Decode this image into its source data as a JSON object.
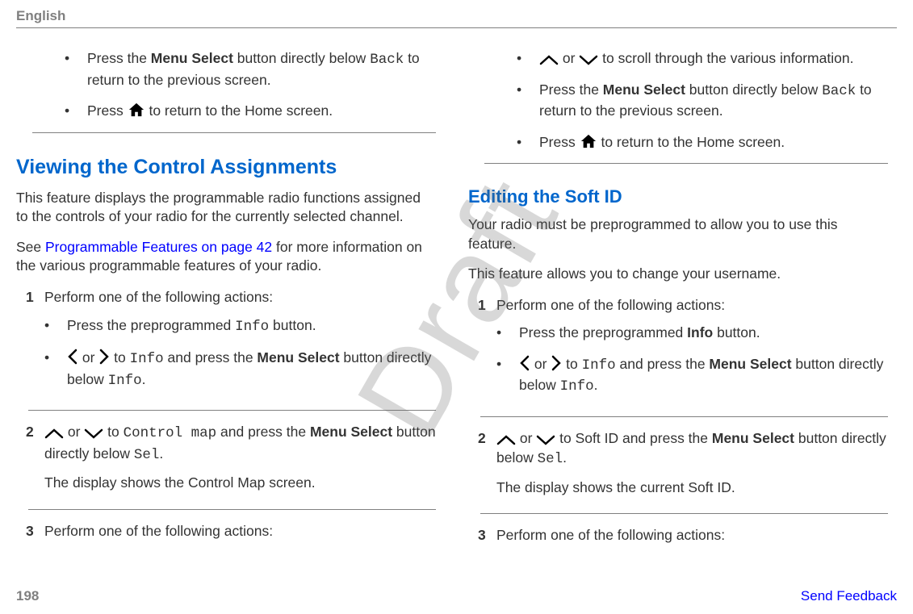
{
  "header": {
    "language": "English"
  },
  "watermark": "Draft",
  "col_left": {
    "top_bullets": [
      {
        "id": "back-bullet",
        "html": "Press the <b>Menu Select</b> button directly below <span class='mono'>Back</span> to return to the previous screen."
      },
      {
        "id": "home-bullet",
        "icon": "home",
        "html": "Press __ICON__ to return to the Home screen."
      }
    ],
    "heading": "Viewing the Control Assignments",
    "intro1": "This feature displays the programmable radio functions assigned to the controls of your radio for the currently selected channel.",
    "intro_link_pre": "See ",
    "intro_link": "Programmable Features on page 42",
    "intro_link_post": " for more information on the various programmable features of your radio.",
    "steps": [
      {
        "num": "1",
        "lead": "Perform one of the following actions:",
        "sub_bullets": [
          {
            "html": "Press the preprogrammed <span class='mono'>Info</span> button."
          },
          {
            "icons": "leftright",
            "html": "__ICON__ or __ICON2__ to <span class='mono'>Info</span> and press the <b>Menu Select</b> button directly below <span class='mono'>Info</span>."
          }
        ]
      },
      {
        "num": "2",
        "icons": "updown",
        "lead_html": "__ICON__ or __ICON2__ to <span class='mono'>Control map</span> and press the <b>Menu Select</b> button directly below <span class='mono'>Sel</span>.",
        "follow": "The display shows the Control Map screen."
      },
      {
        "num": "3",
        "lead": "Perform one of the following actions:"
      }
    ]
  },
  "col_right": {
    "top_bullets": [
      {
        "icons": "updown",
        "html": "__ICON__ or __ICON2__ to scroll through the various information."
      },
      {
        "html": "Press the <b>Menu Select</b> button directly below <span class='mono'>Back</span> to return to the previous screen."
      },
      {
        "icon": "home",
        "html": "Press __ICON__ to return to the Home screen."
      }
    ],
    "heading": "Editing the Soft ID",
    "intro1": "Your radio must be preprogrammed to allow you to use this feature.",
    "intro2": "This feature allows you to change your username.",
    "steps": [
      {
        "num": "1",
        "lead": "Perform one of the following actions:",
        "sub_bullets": [
          {
            "html": "Press the preprogrammed <b>Info</b> button."
          },
          {
            "icons": "leftright",
            "html": "__ICON__ or __ICON2__ to <span class='mono'>Info</span> and press the <b>Menu Select</b> button directly below <span class='mono'>Info</span>."
          }
        ]
      },
      {
        "num": "2",
        "icons": "updown",
        "lead_html": "__ICON__ or __ICON2__ to Soft ID and press the <b>Menu Select</b> button directly below <span class='mono'>Sel</span>.",
        "follow": "The display shows the current Soft ID."
      },
      {
        "num": "3",
        "lead": "Perform one of the following actions:"
      }
    ]
  },
  "footer": {
    "page": "198",
    "feedback": "Send Feedback"
  }
}
